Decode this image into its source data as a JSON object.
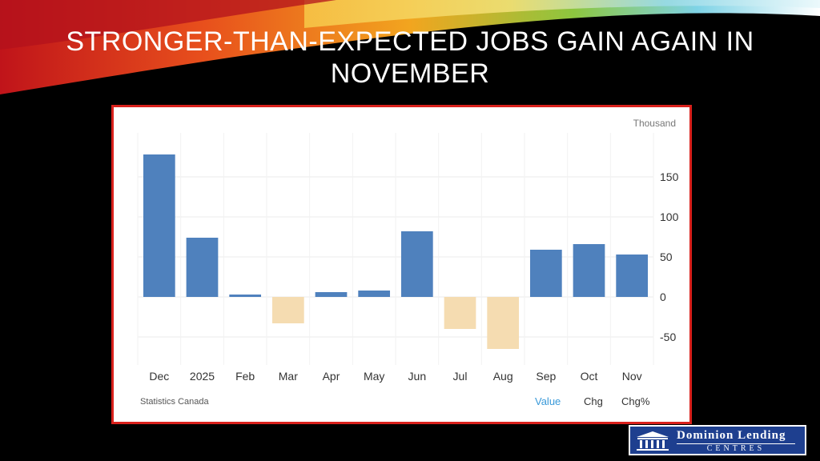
{
  "slide": {
    "title": "Stronger-than-expected jobs gain again in November"
  },
  "chart_data": {
    "type": "bar",
    "categories": [
      "Dec",
      "2025",
      "Feb",
      "Mar",
      "Apr",
      "May",
      "Jun",
      "Jul",
      "Aug",
      "Sep",
      "Oct",
      "Nov"
    ],
    "values": [
      178,
      74,
      3,
      -33,
      6,
      8,
      82,
      -40,
      -65,
      59,
      66,
      53
    ],
    "unit": "Thousand",
    "ylim": [
      -85,
      195
    ],
    "yticks": [
      -50,
      0,
      50,
      100,
      150
    ],
    "grid": true,
    "positive_color": "#4f81bd",
    "negative_color": "#f5dcb1",
    "source": "Statistics Canada",
    "legend": [
      "Value",
      "Chg",
      "Chg%"
    ],
    "legend_active": "Value"
  },
  "logo": {
    "line1": "Dominion Lending",
    "line2": "CENTRES"
  }
}
